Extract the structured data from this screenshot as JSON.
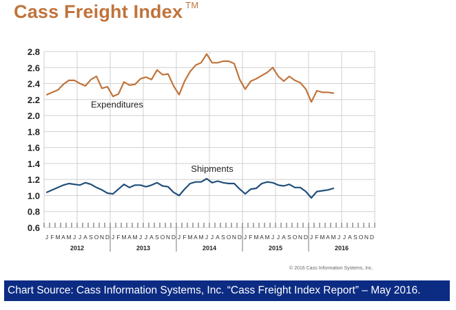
{
  "title": "Cass Freight Index",
  "title_mark": "TM",
  "copyright": "© 2016 Cass Information Systems, Inc.",
  "source_note": "Chart Source: Cass Information Systems, Inc. “Cass Freight Index Report” – May 2016.",
  "colors": {
    "title": "#c0733a",
    "expenditures": "#c0733a",
    "shipments": "#1f4e79",
    "grid": "#cfcfcf",
    "source_bar": "#0c2c84"
  },
  "chart_data": {
    "type": "line",
    "ylim": [
      0.6,
      2.8
    ],
    "yticks": [
      "0.6",
      "0.8",
      "1.0",
      "1.2",
      "1.4",
      "1.6",
      "1.8",
      "2.0",
      "2.2",
      "2.4",
      "2.6",
      "2.8"
    ],
    "grid": true,
    "years": [
      "2012",
      "2013",
      "2014",
      "2015",
      "2016"
    ],
    "month_labels": [
      "J",
      "F",
      "M",
      "A",
      "M",
      "J",
      "J",
      "A",
      "S",
      "O",
      "N",
      "D",
      "J",
      "F",
      "M",
      "A",
      "M",
      "J",
      "J",
      "A",
      "S",
      "O",
      "N",
      "D",
      "J",
      "F",
      "M",
      "A",
      "M",
      "J",
      "J",
      "A",
      "S",
      "O",
      "N",
      "D",
      "J",
      "F",
      "M",
      "A",
      "M",
      "J",
      "J",
      "A",
      "S",
      "O",
      "N",
      "D",
      "J",
      "F",
      "M",
      "A",
      "M",
      "J",
      "J",
      "A",
      "S",
      "O",
      "N",
      "D"
    ],
    "series": [
      {
        "name": "Expenditures",
        "values": [
          2.26,
          2.29,
          2.32,
          2.39,
          2.44,
          2.44,
          2.4,
          2.37,
          2.45,
          2.49,
          2.34,
          2.36,
          2.24,
          2.27,
          2.42,
          2.38,
          2.39,
          2.46,
          2.48,
          2.45,
          2.57,
          2.51,
          2.52,
          2.37,
          2.26,
          2.43,
          2.55,
          2.63,
          2.66,
          2.77,
          2.66,
          2.66,
          2.68,
          2.68,
          2.65,
          2.45,
          2.33,
          2.43,
          2.46,
          2.5,
          2.54,
          2.6,
          2.49,
          2.43,
          2.49,
          2.44,
          2.41,
          2.33,
          2.17,
          2.31,
          2.29,
          2.29,
          2.28
        ]
      },
      {
        "name": "Shipments",
        "values": [
          1.04,
          1.07,
          1.1,
          1.13,
          1.15,
          1.14,
          1.13,
          1.16,
          1.14,
          1.1,
          1.07,
          1.03,
          1.02,
          1.08,
          1.14,
          1.1,
          1.13,
          1.13,
          1.11,
          1.13,
          1.16,
          1.12,
          1.11,
          1.04,
          1.0,
          1.08,
          1.15,
          1.17,
          1.17,
          1.21,
          1.16,
          1.18,
          1.16,
          1.15,
          1.15,
          1.08,
          1.02,
          1.08,
          1.09,
          1.15,
          1.17,
          1.16,
          1.13,
          1.12,
          1.14,
          1.1,
          1.1,
          1.05,
          0.97,
          1.05,
          1.06,
          1.07,
          1.09
        ]
      }
    ]
  }
}
